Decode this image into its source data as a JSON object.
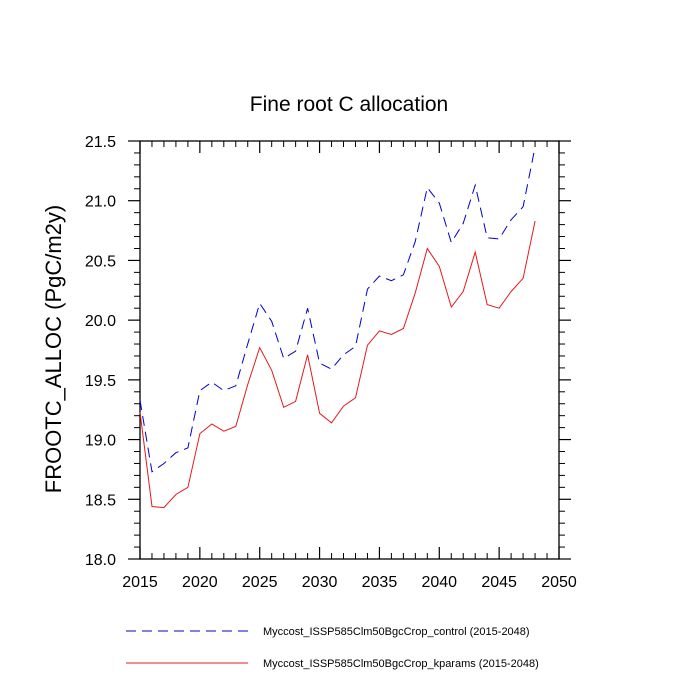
{
  "chart_data": {
    "type": "line",
    "title": "Fine root C allocation",
    "ylabel": "FROOTC_ALLOC  (PgC/m2y)",
    "xlabel": "",
    "xlim": [
      2015,
      2050
    ],
    "ylim": [
      18.0,
      21.5
    ],
    "x_ticks": [
      2015,
      2020,
      2025,
      2030,
      2035,
      2040,
      2045,
      2050
    ],
    "x_tick_labels": [
      "2015",
      "2020",
      "2025",
      "2030",
      "2035",
      "2040",
      "2045",
      "2050"
    ],
    "y_ticks": [
      18.0,
      18.5,
      19.0,
      19.5,
      20.0,
      20.5,
      21.0,
      21.5
    ],
    "y_tick_labels": [
      "18.0",
      "18.5",
      "19.0",
      "19.5",
      "20.0",
      "20.5",
      "21.0",
      "21.5"
    ],
    "x": [
      2015,
      2016,
      2017,
      2018,
      2019,
      2020,
      2021,
      2022,
      2023,
      2024,
      2025,
      2026,
      2027,
      2028,
      2029,
      2030,
      2031,
      2032,
      2033,
      2034,
      2035,
      2036,
      2037,
      2038,
      2039,
      2040,
      2041,
      2042,
      2043,
      2044,
      2045,
      2046,
      2047,
      2048
    ],
    "series": [
      {
        "name": "Myccost_ISSP585Clm50BgcCrop_control (2015-2048)",
        "color": "#0000cc",
        "dash": "dashed",
        "values": [
          19.33,
          18.73,
          18.8,
          18.89,
          18.93,
          19.41,
          19.48,
          19.41,
          19.45,
          19.8,
          20.14,
          19.99,
          19.68,
          19.74,
          20.1,
          19.64,
          19.59,
          19.71,
          19.78,
          20.26,
          20.37,
          20.33,
          20.38,
          20.66,
          21.11,
          20.98,
          20.65,
          20.81,
          21.13,
          20.69,
          20.68,
          20.84,
          20.95,
          21.45
        ]
      },
      {
        "name": "Myccost_ISSP585Clm50BgcCrop_kparams (2015-2048)",
        "color": "#e41a1c",
        "dash": "solid",
        "values": [
          19.23,
          18.44,
          18.43,
          18.54,
          18.6,
          19.05,
          19.13,
          19.07,
          19.11,
          19.46,
          19.77,
          19.58,
          19.27,
          19.32,
          19.71,
          19.22,
          19.14,
          19.28,
          19.35,
          19.79,
          19.91,
          19.88,
          19.93,
          20.23,
          20.6,
          20.45,
          20.11,
          20.24,
          20.57,
          20.13,
          20.1,
          20.24,
          20.35,
          20.83
        ]
      }
    ],
    "legend_position": "bottom",
    "grid": false
  }
}
